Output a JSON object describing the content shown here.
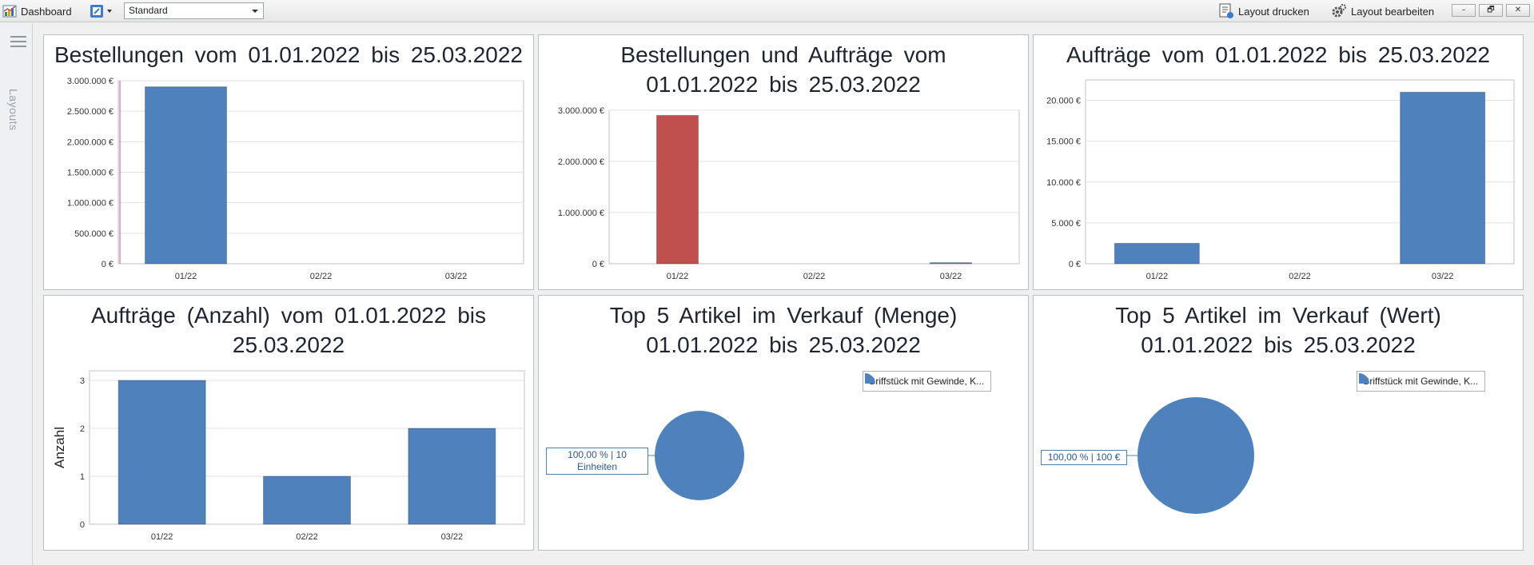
{
  "toolbar": {
    "app_title": "Dashboard",
    "layout_select_value": "Standard",
    "print_label": "Layout drucken",
    "edit_label": "Layout bearbeiten",
    "minimize_symbol": "–",
    "restore_symbol": "🗗",
    "close_symbol": "✕"
  },
  "side_rail": {
    "label": "Layouts",
    "menu_icon": "hamburger-icon"
  },
  "colors": {
    "blue": "#4f81bd",
    "red": "#c0504d"
  },
  "panels": [
    {
      "title": "Bestellungen vom 01.01.2022 bis 25.03.2022"
    },
    {
      "title": "Bestellungen und Aufträge vom 01.01.2022 bis 25.03.2022"
    },
    {
      "title": "Aufträge vom 01.01.2022 bis 25.03.2022"
    },
    {
      "title": "Aufträge (Anzahl) vom 01.01.2022 bis 25.03.2022"
    },
    {
      "title": "Top 5 Artikel im Verkauf (Menge) 01.01.2022 bis 25.03.2022"
    },
    {
      "title": "Top 5 Artikel im Verkauf (Wert) 01.01.2022 bis 25.03.2022"
    }
  ],
  "chart_data": [
    {
      "type": "bar",
      "title": "Bestellungen vom 01.01.2022 bis 25.03.2022",
      "categories": [
        "01/22",
        "02/22",
        "03/22"
      ],
      "values": [
        2900000,
        0,
        0
      ],
      "yticks": [
        "0 €",
        "500.000 €",
        "1.000.000 €",
        "1.500.000 €",
        "2.000.000 €",
        "2.500.000 €",
        "3.000.000 €"
      ],
      "ylim": [
        0,
        3000000
      ],
      "color": "#4f81bd"
    },
    {
      "type": "bar",
      "title": "Bestellungen und Aufträge vom 01.01.2022 bis 25.03.2022",
      "categories": [
        "01/22",
        "02/22",
        "03/22"
      ],
      "series": [
        {
          "values": [
            2900000,
            0,
            0
          ],
          "color": "#c0504d"
        },
        {
          "values": [
            0,
            0,
            21000
          ],
          "color": "#4f81bd"
        }
      ],
      "yticks": [
        "0 €",
        "1.000.000 €",
        "2.000.000 €",
        "3.000.000 €"
      ],
      "ylim": [
        0,
        3000000
      ]
    },
    {
      "type": "bar",
      "title": "Aufträge vom 01.01.2022 bis 25.03.2022",
      "categories": [
        "01/22",
        "02/22",
        "03/22"
      ],
      "values": [
        2500,
        0,
        21000
      ],
      "yticks": [
        "0 €",
        "5.000 €",
        "10.000 €",
        "15.000 €",
        "20.000 €"
      ],
      "ylim": [
        0,
        22500
      ],
      "color": "#4f81bd"
    },
    {
      "type": "bar",
      "title": "Aufträge (Anzahl) vom 01.01.2022 bis 25.03.2022",
      "categories": [
        "01/22",
        "02/22",
        "03/22"
      ],
      "values": [
        3,
        1,
        2
      ],
      "yticks": [
        "0",
        "1",
        "2",
        "3"
      ],
      "ylim": [
        0,
        3.2
      ],
      "ylabel": "Anzahl",
      "color": "#4f81bd"
    },
    {
      "type": "pie",
      "title": "Top 5 Artikel im Verkauf (Menge) 01.01.2022 bis 25.03.2022",
      "slices": [
        {
          "label": "Griffstück mit Gewinde, K...",
          "value": 100,
          "data_label": "100,00 % | 10 Einheiten"
        }
      ],
      "legend": "top-right",
      "color": "#4f81bd"
    },
    {
      "type": "pie",
      "title": "Top 5 Artikel im Verkauf (Wert) 01.01.2022 bis 25.03.2022",
      "slices": [
        {
          "label": "Griffstück mit Gewinde, K...",
          "value": 100,
          "data_label": "100,00 % | 100 €"
        }
      ],
      "legend": "top-right",
      "color": "#4f81bd"
    }
  ]
}
